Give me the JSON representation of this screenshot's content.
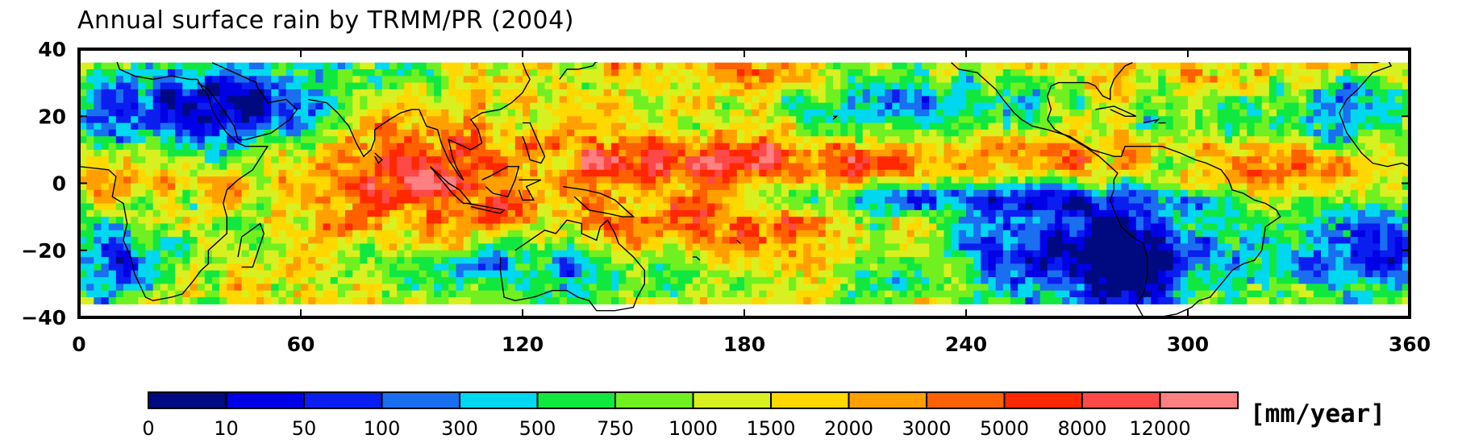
{
  "title": "Annual surface rain by TRMM/PR (2004)",
  "map": {
    "lon_range": [
      0,
      360
    ],
    "lat_range": [
      -40,
      40
    ],
    "data_lat_range": [
      -36,
      36
    ],
    "x_ticks": [
      0,
      60,
      120,
      180,
      240,
      300,
      360
    ],
    "y_ticks": [
      40,
      20,
      0,
      -20,
      -40
    ],
    "x_tick_labels": [
      "0",
      "60",
      "120",
      "180",
      "240",
      "300",
      "360"
    ],
    "y_tick_labels": [
      "40",
      "20",
      "0",
      "−20",
      "−40"
    ]
  },
  "colorbar": {
    "unit": "[mm/year]",
    "labels": [
      "0",
      "10",
      "50",
      "100",
      "300",
      "500",
      "750",
      "1000",
      "1500",
      "2000",
      "3000",
      "5000",
      "8000",
      "12000"
    ],
    "colors": [
      "#000a80",
      "#0000e6",
      "#0a1ef0",
      "#1a6ef0",
      "#00d8f0",
      "#10e840",
      "#70f020",
      "#d8f020",
      "#ffd800",
      "#ffa000",
      "#ff6000",
      "#ff2800",
      "#ff4848",
      "#ff8080"
    ]
  }
}
